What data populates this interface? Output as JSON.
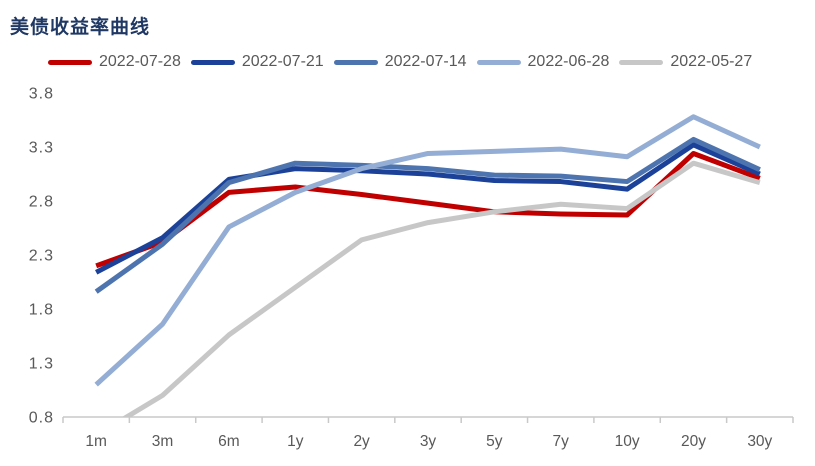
{
  "title": "美债收益率曲线",
  "colors": {
    "title": "#1F3864",
    "axis_line": "#C9C9C9",
    "tick_label": "#595959"
  },
  "chart_data": {
    "type": "line",
    "title": "美债收益率曲线",
    "categories": [
      "1m",
      "3m",
      "6m",
      "1y",
      "2y",
      "3y",
      "5y",
      "7y",
      "10y",
      "20y",
      "30y"
    ],
    "series": [
      {
        "name": "2022-07-28",
        "color": "#C00000",
        "values": [
          2.2,
          2.42,
          2.88,
          2.93,
          2.86,
          2.78,
          2.7,
          2.68,
          2.67,
          3.24,
          3.01
        ]
      },
      {
        "name": "2022-07-21",
        "color": "#1B4298",
        "values": [
          2.14,
          2.46,
          3.0,
          3.1,
          3.08,
          3.05,
          2.99,
          2.98,
          2.91,
          3.32,
          3.05
        ]
      },
      {
        "name": "2022-07-14",
        "color": "#4D74AE",
        "values": [
          1.96,
          2.4,
          2.97,
          3.15,
          3.13,
          3.1,
          3.04,
          3.03,
          2.98,
          3.37,
          3.09
        ]
      },
      {
        "name": "2022-06-28",
        "color": "#94ADD4",
        "values": [
          1.1,
          1.66,
          2.56,
          2.88,
          3.1,
          3.24,
          3.26,
          3.28,
          3.21,
          3.58,
          3.3
        ]
      },
      {
        "name": "2022-05-27",
        "color": "#C7C7C7",
        "values": [
          0.63,
          1.0,
          1.56,
          2.0,
          2.44,
          2.6,
          2.7,
          2.77,
          2.73,
          3.15,
          2.97
        ]
      }
    ],
    "xlabel": "",
    "ylabel": "",
    "ylim": [
      0.8,
      3.8
    ],
    "yticks": [
      3.8,
      3.3,
      2.8,
      2.3,
      1.8,
      1.3,
      0.8
    ],
    "grid": false,
    "legend_position": "top"
  }
}
